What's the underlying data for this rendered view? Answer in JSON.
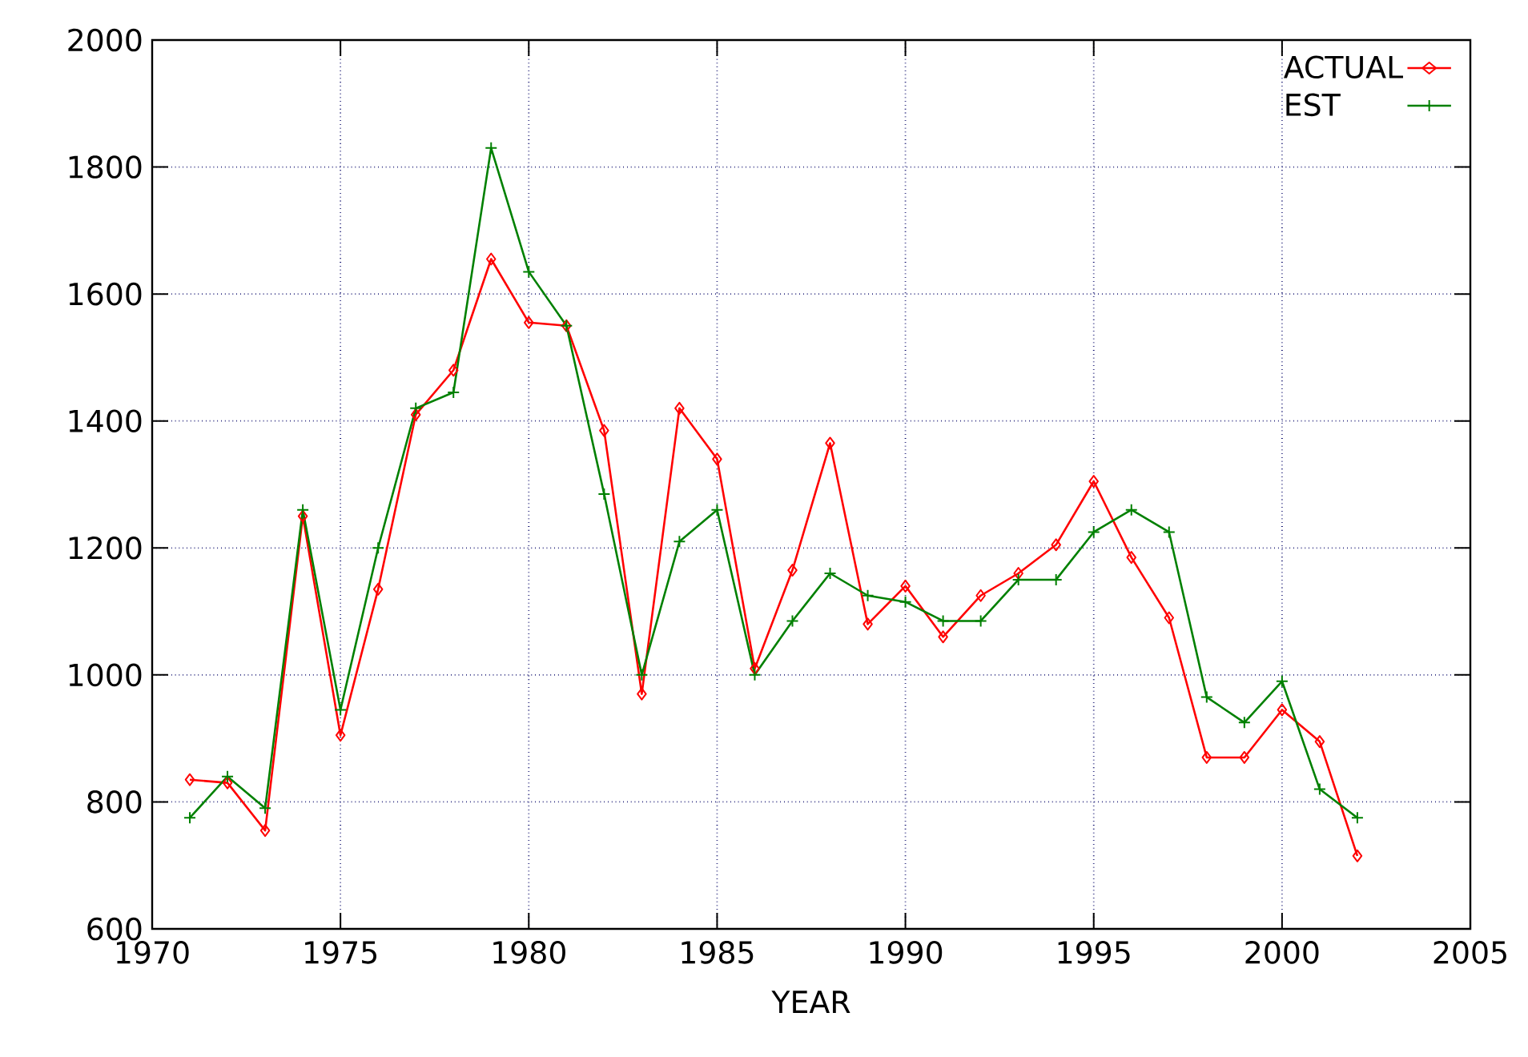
{
  "chart_data": {
    "type": "line",
    "xlabel": "YEAR",
    "x": [
      1971,
      1972,
      1973,
      1974,
      1975,
      1976,
      1977,
      1978,
      1979,
      1980,
      1981,
      1982,
      1983,
      1984,
      1985,
      1986,
      1987,
      1988,
      1989,
      1990,
      1991,
      1992,
      1993,
      1994,
      1995,
      1996,
      1997,
      1998,
      1999,
      2000,
      2001,
      2002
    ],
    "series": [
      {
        "name": "ACTUAL",
        "color": "#ff0000",
        "marker": "diamond",
        "values": [
          835,
          830,
          755,
          1250,
          905,
          1135,
          1410,
          1480,
          1655,
          1555,
          1550,
          1385,
          970,
          1420,
          1340,
          1010,
          1165,
          1365,
          1080,
          1140,
          1060,
          1125,
          1160,
          1205,
          1305,
          1185,
          1090,
          870,
          870,
          945,
          895,
          715
        ]
      },
      {
        "name": "EST",
        "color": "#008000",
        "marker": "cross",
        "values": [
          775,
          840,
          790,
          1260,
          945,
          1200,
          1420,
          1445,
          1830,
          1635,
          1550,
          1285,
          1000,
          1210,
          1260,
          1000,
          1085,
          1160,
          1125,
          1115,
          1085,
          1085,
          1150,
          1150,
          1225,
          1260,
          1225,
          965,
          925,
          990,
          820,
          775
        ]
      }
    ],
    "xlim": [
      1970,
      2005
    ],
    "xticks": [
      1970,
      1975,
      1980,
      1985,
      1990,
      1995,
      2000,
      2005
    ],
    "ylim": [
      600,
      2000
    ],
    "yticks": [
      600,
      800,
      1000,
      1200,
      1400,
      1600,
      1800,
      2000
    ],
    "grid": true,
    "legend": "top right",
    "line_style": "solid"
  }
}
